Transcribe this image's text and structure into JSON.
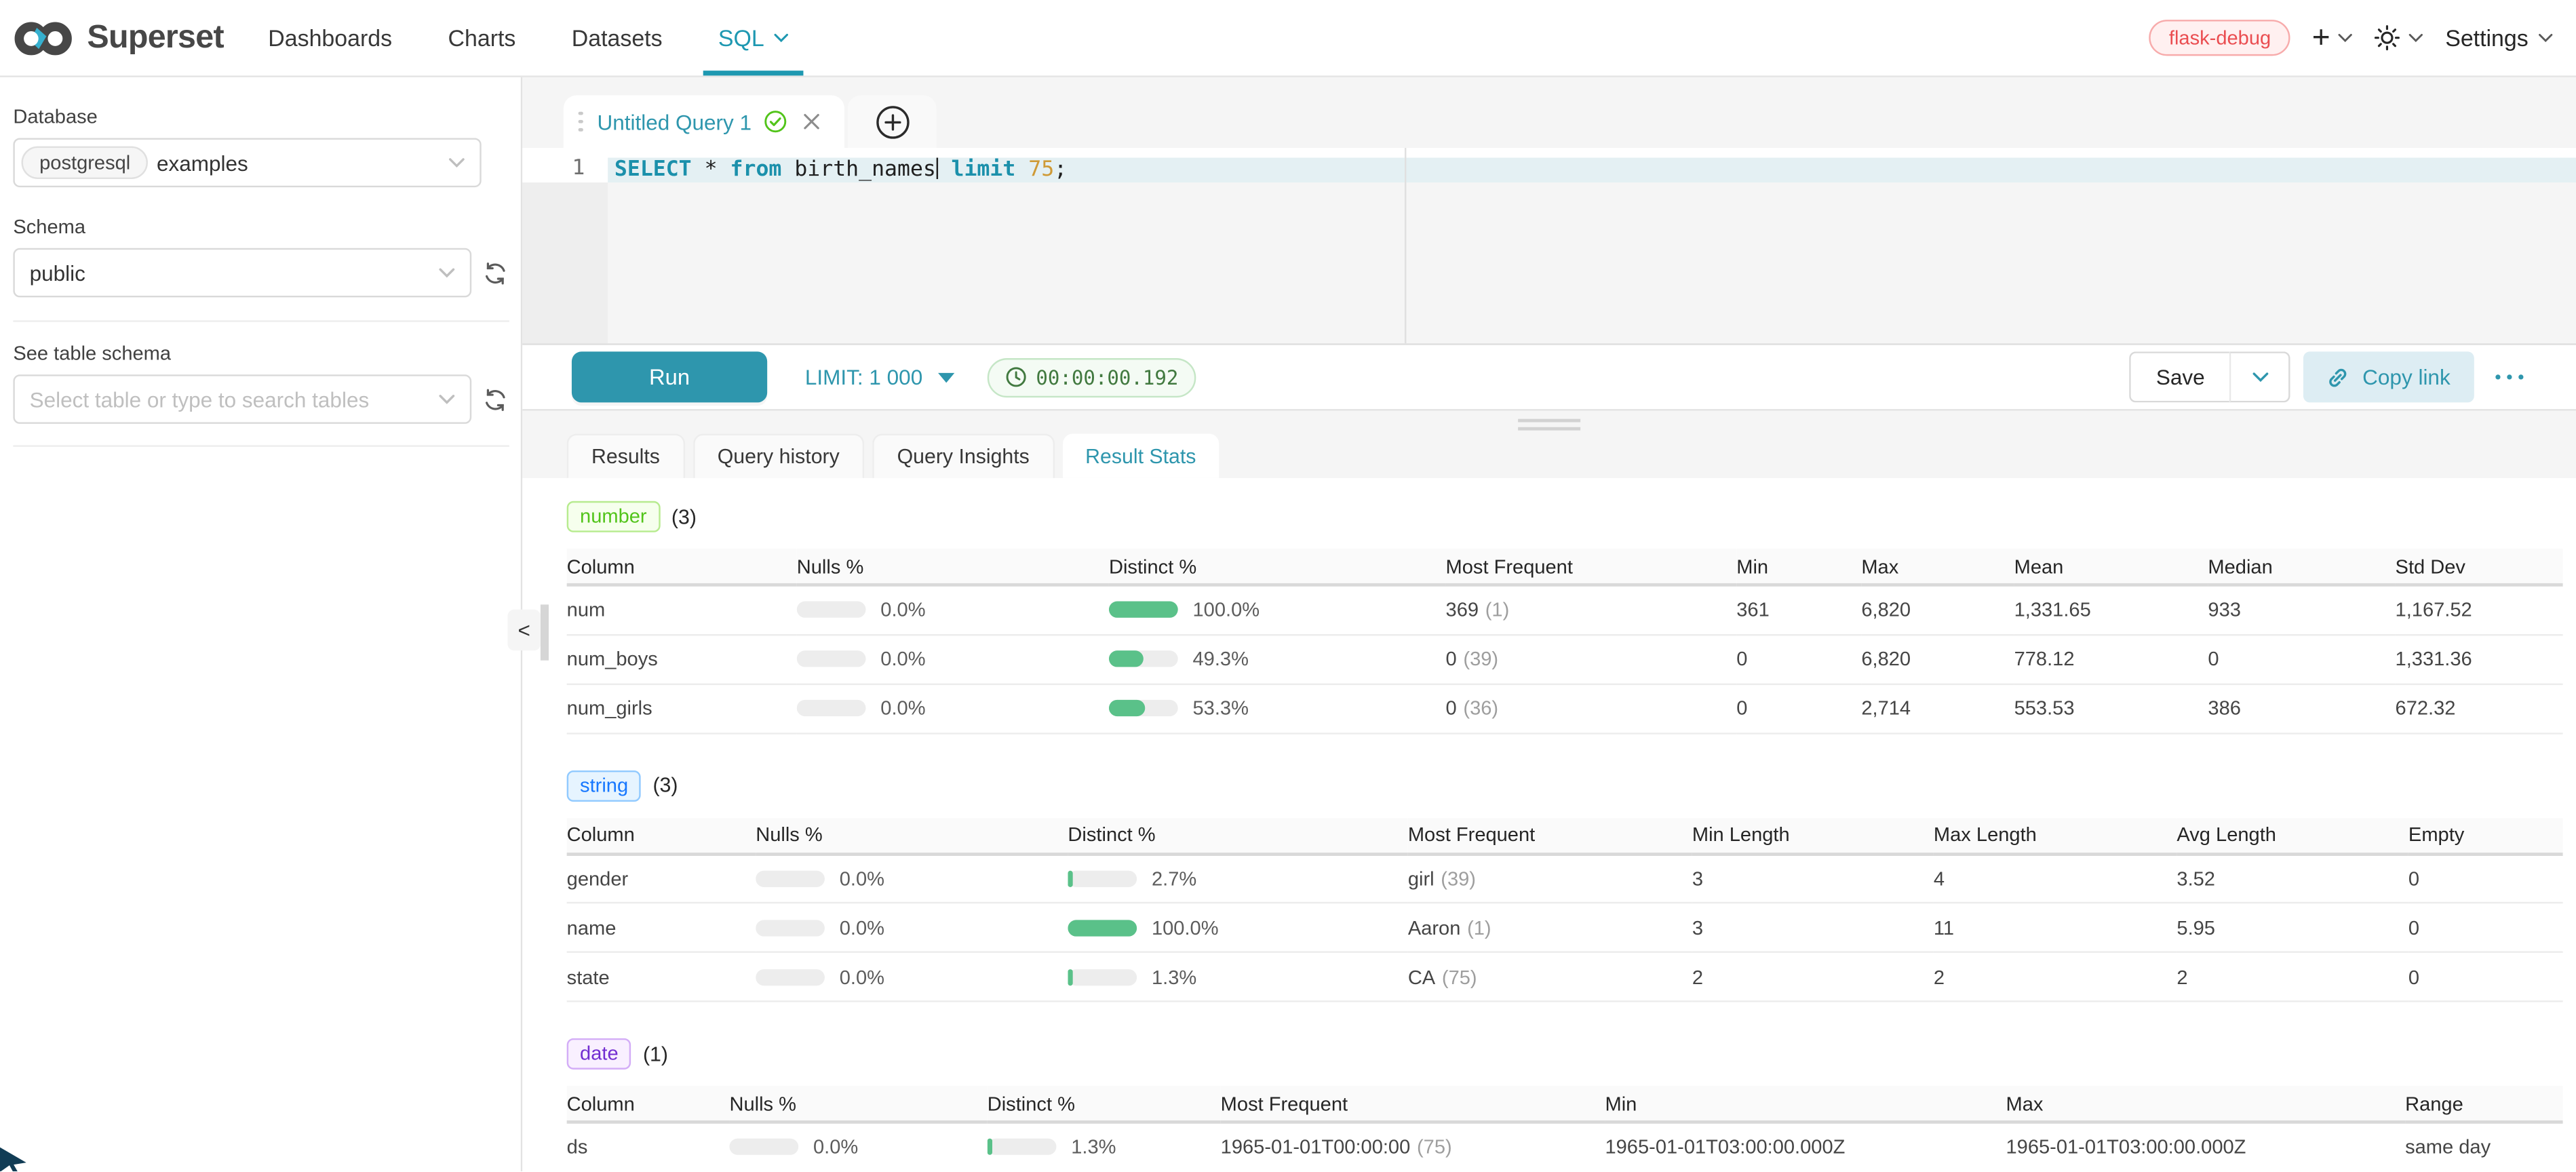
{
  "navbar": {
    "brand": "Superset",
    "items": [
      {
        "label": "Dashboards"
      },
      {
        "label": "Charts"
      },
      {
        "label": "Datasets"
      },
      {
        "label": "SQL",
        "active": true
      }
    ],
    "env_badge": "flask-debug",
    "settings_label": "Settings",
    "accent_color": "#1e98b1"
  },
  "sidebar": {
    "database_label": "Database",
    "database_type_tag": "postgresql",
    "database_value": "examples",
    "schema_label": "Schema",
    "schema_value": "public",
    "table_label": "See table schema",
    "table_placeholder": "Select table or type to search tables",
    "collapse_arrow": "<"
  },
  "editor": {
    "tab_title": "Untitled Query 1",
    "line_number": "1",
    "sql_text": "SELECT * from birth_names limit 75;",
    "sql_tokens": [
      {
        "text": "SELECT",
        "type": "keyword"
      },
      {
        "text": " * ",
        "type": "plain"
      },
      {
        "text": "from",
        "type": "keyword"
      },
      {
        "text": " birth_names",
        "type": "plain"
      },
      {
        "text": "",
        "type": "caret"
      },
      {
        "text": " ",
        "type": "plain"
      },
      {
        "text": "limit",
        "type": "keyword"
      },
      {
        "text": " ",
        "type": "plain"
      },
      {
        "text": "75",
        "type": "number"
      },
      {
        "text": ";",
        "type": "plain"
      }
    ]
  },
  "toolbar": {
    "run_label": "Run",
    "limit_label": "LIMIT:",
    "limit_value": "1 000",
    "elapsed_time": "00:00:00.192",
    "save_label": "Save",
    "copy_link_label": "Copy link"
  },
  "result_tabs": [
    {
      "label": "Results"
    },
    {
      "label": "Query history"
    },
    {
      "label": "Query Insights"
    },
    {
      "label": "Result Stats",
      "active": true
    }
  ],
  "stats": {
    "bar_fill_color": "#5ac189",
    "sections": [
      {
        "id": "number",
        "badge": "number",
        "count": "(3)",
        "badge_colors": {
          "text": "#52c41a",
          "bg": "#f6ffed",
          "border": "#b7eb8f"
        },
        "columns": [
          "Column",
          "Nulls %",
          "Distinct %",
          "Most Frequent",
          "Min",
          "Max",
          "Mean",
          "Median",
          "Std Dev"
        ],
        "rows": [
          {
            "name": "num",
            "nulls": {
              "label": "0.0%",
              "fill": 0
            },
            "distinct": {
              "label": "100.0%",
              "fill": 100
            },
            "most_frequent": {
              "value": "369",
              "count": "(1)"
            },
            "stats": [
              "361",
              "6,820",
              "1,331.65",
              "933",
              "1,167.52"
            ]
          },
          {
            "name": "num_boys",
            "nulls": {
              "label": "0.0%",
              "fill": 0
            },
            "distinct": {
              "label": "49.3%",
              "fill": 49.3
            },
            "most_frequent": {
              "value": "0",
              "count": "(39)"
            },
            "stats": [
              "0",
              "6,820",
              "778.12",
              "0",
              "1,331.36"
            ]
          },
          {
            "name": "num_girls",
            "nulls": {
              "label": "0.0%",
              "fill": 0
            },
            "distinct": {
              "label": "53.3%",
              "fill": 53.3
            },
            "most_frequent": {
              "value": "0",
              "count": "(36)"
            },
            "stats": [
              "0",
              "2,714",
              "553.53",
              "386",
              "672.32"
            ]
          }
        ]
      },
      {
        "id": "string",
        "badge": "string",
        "count": "(3)",
        "badge_colors": {
          "text": "#1677ff",
          "bg": "#e6f4ff",
          "border": "#91caff"
        },
        "columns": [
          "Column",
          "Nulls %",
          "Distinct %",
          "Most Frequent",
          "Min Length",
          "Max Length",
          "Avg Length",
          "Empty"
        ],
        "rows": [
          {
            "name": "gender",
            "nulls": {
              "label": "0.0%",
              "fill": 0
            },
            "distinct": {
              "label": "2.7%",
              "fill": 2.7
            },
            "most_frequent": {
              "value": "girl",
              "count": "(39)"
            },
            "stats": [
              "3",
              "4",
              "3.52",
              "0"
            ]
          },
          {
            "name": "name",
            "nulls": {
              "label": "0.0%",
              "fill": 0
            },
            "distinct": {
              "label": "100.0%",
              "fill": 100
            },
            "most_frequent": {
              "value": "Aaron",
              "count": "(1)"
            },
            "stats": [
              "3",
              "11",
              "5.95",
              "0"
            ]
          },
          {
            "name": "state",
            "nulls": {
              "label": "0.0%",
              "fill": 0
            },
            "distinct": {
              "label": "1.3%",
              "fill": 1.3
            },
            "most_frequent": {
              "value": "CA",
              "count": "(75)"
            },
            "stats": [
              "2",
              "2",
              "2",
              "0"
            ]
          }
        ]
      },
      {
        "id": "date",
        "badge": "date",
        "count": "(1)",
        "badge_colors": {
          "text": "#722ed1",
          "bg": "#f9f0ff",
          "border": "#d3adf7"
        },
        "columns": [
          "Column",
          "Nulls %",
          "Distinct %",
          "Most Frequent",
          "Min",
          "Max",
          "Range"
        ],
        "rows": [
          {
            "name": "ds",
            "nulls": {
              "label": "0.0%",
              "fill": 0
            },
            "distinct": {
              "label": "1.3%",
              "fill": 1.3
            },
            "most_frequent": {
              "value": "1965-01-01T00:00:00",
              "count": "(75)"
            },
            "stats": [
              "1965-01-01T03:00:00.000Z",
              "1965-01-01T03:00:00.000Z",
              "same day"
            ]
          }
        ]
      }
    ]
  }
}
